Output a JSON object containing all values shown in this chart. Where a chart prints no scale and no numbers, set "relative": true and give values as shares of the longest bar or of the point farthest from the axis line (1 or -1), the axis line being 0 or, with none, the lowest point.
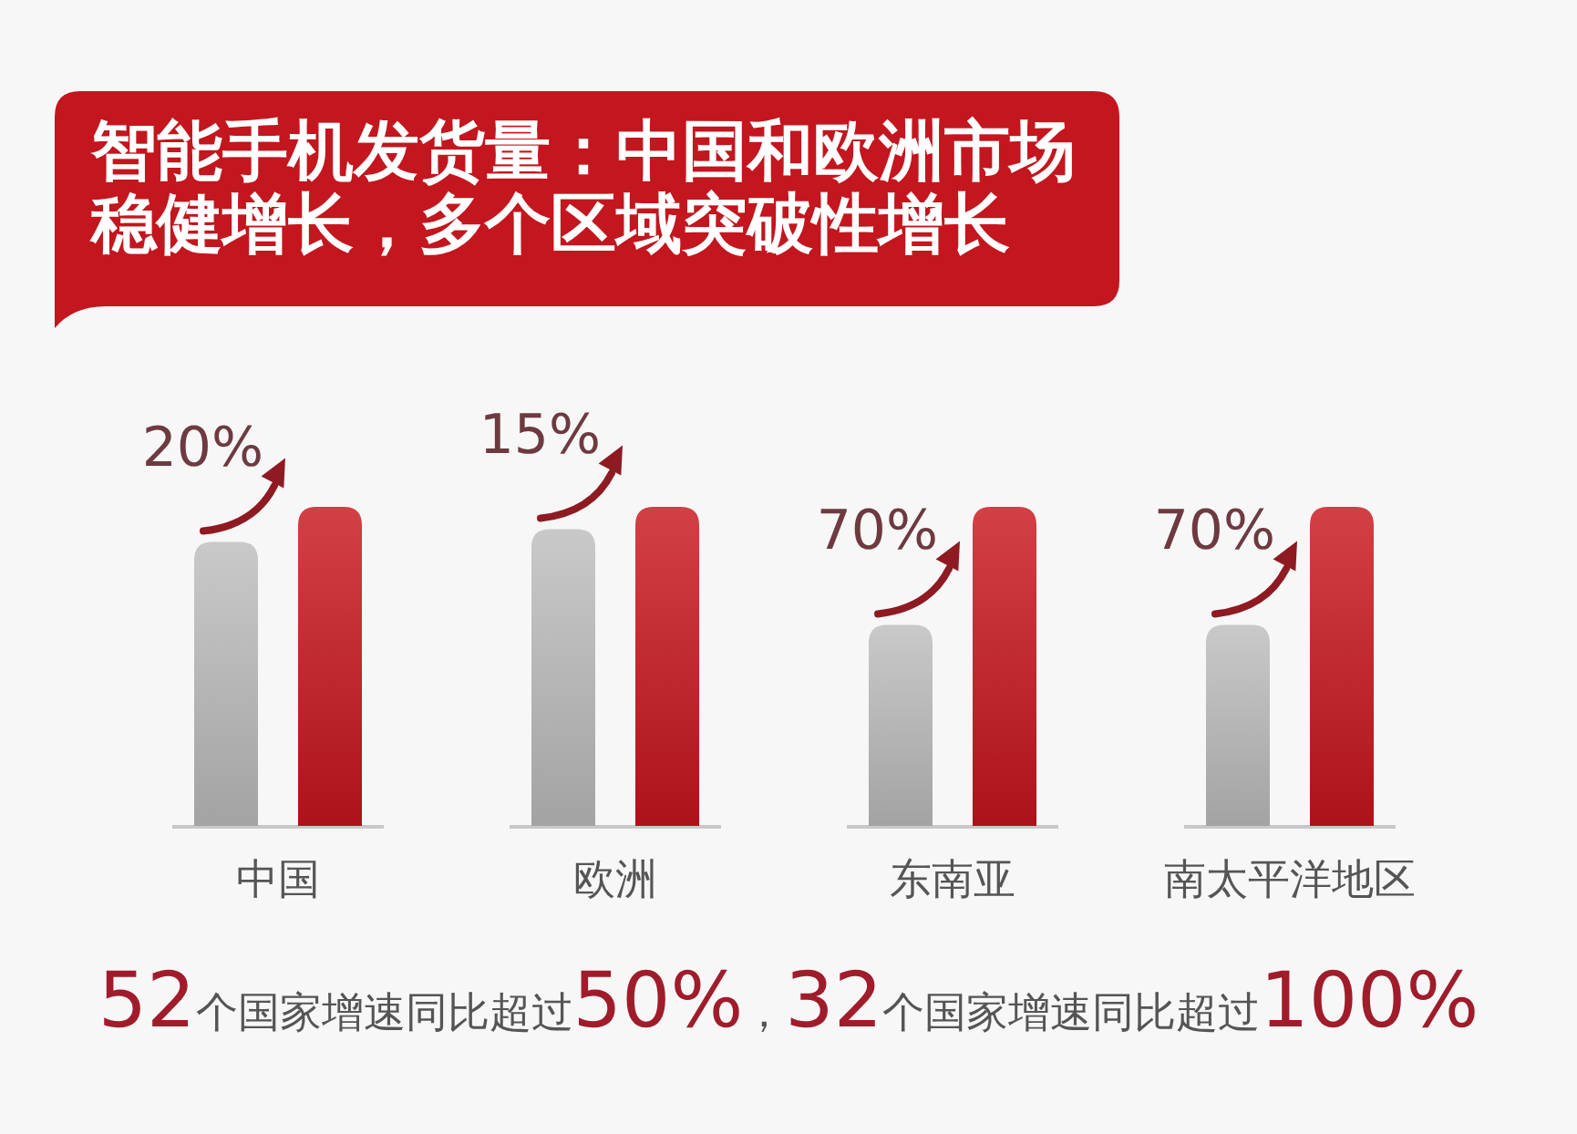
{
  "chart_data": {
    "type": "bar",
    "title": "智能手机发货量：中国和欧洲市场稳健增长，多个区域突破性增长",
    "categories": [
      "中国",
      "欧洲",
      "东南亚",
      "南太平洋地区"
    ],
    "relative": true,
    "series": [
      {
        "color": "#bdbdbd",
        "values": [
          0.89,
          0.93,
          0.63,
          0.63
        ]
      },
      {
        "color": "#c8161d",
        "values": [
          1,
          1,
          1,
          1
        ]
      }
    ],
    "annotations": [
      "20%",
      "15%",
      "70%",
      "70%",
      "52个国家增速同比超过50%，32个国家增速同比超过100%"
    ]
  }
}
